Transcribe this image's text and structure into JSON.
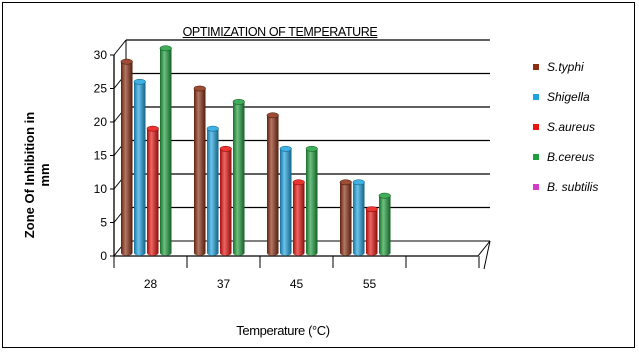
{
  "chart_data": {
    "type": "bar",
    "title": "OPTIMIZATION OF TEMPERATURE",
    "xlabel": "Temperature (°C)",
    "ylabel": "Zone Of Inhibition in mm",
    "categories": [
      "28",
      "37",
      "45",
      "55"
    ],
    "ylim": [
      0,
      30
    ],
    "yticks": [
      "0",
      "5",
      "10",
      "15",
      "20",
      "25",
      "30"
    ],
    "grid": true,
    "legend_position": "right",
    "series": [
      {
        "name": "S.typhi",
        "color": "#8b2e12",
        "values": [
          29,
          25,
          21,
          11
        ]
      },
      {
        "name": "Shigella",
        "color": "#1ea3e0",
        "values": [
          26,
          19,
          16,
          11
        ]
      },
      {
        "name": "S.aureus",
        "color": "#e8140f",
        "values": [
          19,
          16,
          11,
          7
        ]
      },
      {
        "name": "B.cereus",
        "color": "#1f9e3d",
        "values": [
          31,
          23,
          16,
          9
        ]
      },
      {
        "name": "B. subtilis",
        "color": "#d23cc8",
        "values": [
          0,
          0,
          0,
          0
        ]
      }
    ]
  }
}
